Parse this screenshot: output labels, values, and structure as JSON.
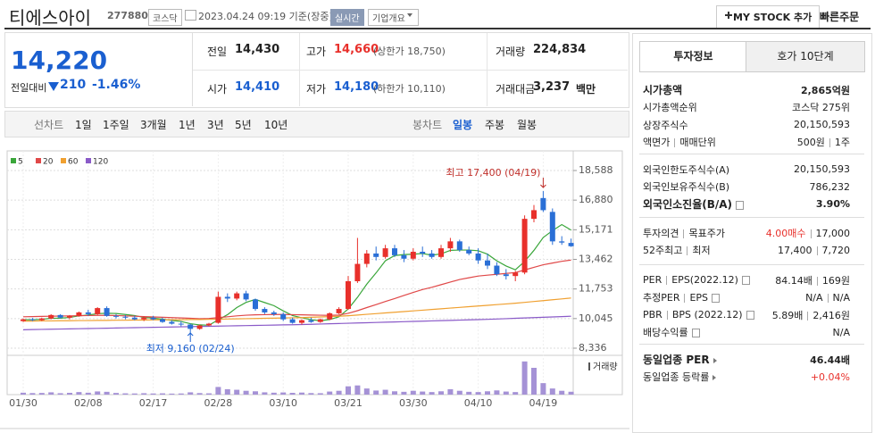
{
  "header": {
    "title": "티에스아이",
    "code": "277880",
    "market": "코스닥",
    "time": "2023.04.24 09:19 기준(장중)",
    "realtime": "실시간",
    "overview": "기업개요",
    "mystock": "MY STOCK 추가",
    "quick": "빠른주문"
  },
  "quote": {
    "price": "14,220",
    "change_label": "전일대비",
    "change": "210",
    "pct": "-1.46%",
    "stats": [
      [
        {
          "label": "전일",
          "value": "14,430",
          "color": "#222"
        },
        {
          "label": "고가",
          "value": "14,660",
          "color": "#e8302b",
          "sub": "(상한가 18,750)"
        },
        {
          "label": "거래량",
          "value": "224,834",
          "color": "#222"
        }
      ],
      [
        {
          "label": "시가",
          "value": "14,410",
          "color": "#1a5fd0"
        },
        {
          "label": "저가",
          "value": "14,180",
          "color": "#1a5fd0",
          "sub": "(하한가 10,110)"
        },
        {
          "label": "거래대금",
          "value": "3,237",
          "color": "#222",
          "sub": "백만"
        }
      ]
    ]
  },
  "tabs": {
    "line_label": "선차트",
    "line_periods": [
      "1일",
      "1주일",
      "3개월",
      "1년",
      "3년",
      "5년",
      "10년"
    ],
    "candle_label": "봉차트",
    "candle_periods": [
      "일봉",
      "주봉",
      "월봉"
    ],
    "candle_active": 0
  },
  "info": {
    "tabs": [
      "투자정보",
      "호가 10단계"
    ],
    "active_tab": 0,
    "sections": [
      [
        {
          "label": [
            "시가총액"
          ],
          "value": [
            "2,865억원"
          ],
          "bold": true
        },
        {
          "label": [
            "시가총액순위"
          ],
          "value": [
            "코스닥 275위"
          ]
        },
        {
          "label": [
            "상장주식수"
          ],
          "value": [
            "20,150,593"
          ]
        },
        {
          "label": [
            "액면가",
            "매매단위"
          ],
          "value": [
            "500원",
            "1주"
          ]
        }
      ],
      [
        {
          "label": [
            "외국인한도주식수(A)"
          ],
          "value": [
            "20,150,593"
          ]
        },
        {
          "label": [
            "외국인보유주식수(B)"
          ],
          "value": [
            "786,232"
          ]
        },
        {
          "label": [
            "외국인소진율(B/A)"
          ],
          "value": [
            "3.90%"
          ],
          "bold": true,
          "help": true
        }
      ],
      [
        {
          "label": [
            "투자의견",
            "목표주가"
          ],
          "value": [
            "4.00매수",
            "17,000"
          ],
          "accent": 0
        },
        {
          "label": [
            "52주최고",
            "최저"
          ],
          "value": [
            "17,400",
            "7,720"
          ]
        }
      ],
      [
        {
          "label": [
            "PER",
            "EPS(2022.12)"
          ],
          "value": [
            "84.14배",
            "169원"
          ],
          "help": true
        },
        {
          "label": [
            "추정PER",
            "EPS"
          ],
          "value": [
            "N/A",
            "N/A"
          ],
          "help": true
        },
        {
          "label": [
            "PBR",
            "BPS (2022.12)"
          ],
          "value": [
            "5.89배",
            "2,416원"
          ],
          "help": true
        },
        {
          "label": [
            "배당수익률"
          ],
          "value": [
            "N/A"
          ],
          "help": true
        }
      ],
      [
        {
          "label": [
            "동일업종 PER"
          ],
          "value": [
            "46.44배"
          ],
          "bold": true,
          "arrow": true
        },
        {
          "label": [
            "동일업종 등락률"
          ],
          "value": [
            "+0.04%"
          ],
          "arrow": true,
          "accent": 0
        }
      ]
    ]
  },
  "chart_data": [
    {
      "type": "candlestick",
      "up_color": "#e8302b",
      "down_color": "#2a6fd6",
      "grid": true,
      "categories": [
        "01/30",
        null,
        null,
        null,
        null,
        null,
        null,
        "02/08",
        null,
        null,
        null,
        null,
        null,
        null,
        "02/17",
        null,
        null,
        null,
        null,
        null,
        null,
        "02/28",
        null,
        null,
        null,
        null,
        null,
        null,
        "03/10",
        null,
        null,
        null,
        null,
        null,
        null,
        "03/21",
        null,
        null,
        null,
        null,
        null,
        null,
        "03/30",
        null,
        null,
        null,
        null,
        null,
        null,
        "04/10",
        null,
        null,
        null,
        null,
        null,
        null,
        "04/19",
        null,
        null,
        null
      ],
      "open": [
        9900,
        10000,
        9950,
        10050,
        10250,
        10100,
        10200,
        10400,
        10300,
        10650,
        10200,
        10150,
        10100,
        10000,
        10100,
        10000,
        9850,
        9750,
        9700,
        9450,
        9650,
        9800,
        11300,
        11200,
        11500,
        11150,
        10600,
        10400,
        10300,
        10000,
        9800,
        9950,
        9850,
        10000,
        10350,
        10600,
        12200,
        13200,
        13800,
        13600,
        14100,
        13700,
        13500,
        13900,
        13800,
        13600,
        14100,
        14500,
        14000,
        13800,
        13400,
        13100,
        12600,
        12500,
        12700,
        15800,
        17000,
        16200,
        14500,
        14410
      ],
      "high": [
        10050,
        10080,
        10100,
        10300,
        10300,
        10250,
        10450,
        10550,
        10700,
        10750,
        10300,
        10250,
        10200,
        10150,
        10200,
        10100,
        9950,
        9900,
        9750,
        9700,
        9800,
        11600,
        11500,
        11600,
        11650,
        11200,
        10700,
        10500,
        10400,
        10100,
        10000,
        10100,
        10050,
        10400,
        10700,
        12500,
        14700,
        14000,
        14200,
        14300,
        14300,
        14000,
        14100,
        14200,
        14000,
        14300,
        14700,
        14600,
        14200,
        14100,
        13800,
        13300,
        12900,
        12800,
        16000,
        16600,
        17400,
        16400,
        14800,
        14660
      ],
      "low": [
        9850,
        9900,
        9900,
        10000,
        10050,
        10000,
        10150,
        10200,
        10250,
        10150,
        10050,
        10000,
        9950,
        9900,
        9950,
        9800,
        9700,
        9600,
        9160,
        9400,
        9600,
        9750,
        11000,
        11100,
        11050,
        10500,
        10300,
        10200,
        9900,
        9750,
        9700,
        9800,
        9800,
        9950,
        10300,
        10550,
        12100,
        13000,
        13400,
        13500,
        13600,
        13300,
        13400,
        13600,
        13500,
        13500,
        13900,
        13900,
        13700,
        13200,
        12900,
        12500,
        12300,
        12200,
        12600,
        15600,
        16200,
        14300,
        14300,
        14180
      ],
      "close": [
        10000,
        9950,
        10050,
        10250,
        10100,
        10200,
        10400,
        10300,
        10650,
        10200,
        10150,
        10100,
        10000,
        10100,
        10000,
        9850,
        9750,
        9700,
        9450,
        9650,
        9750,
        11300,
        11200,
        11500,
        11150,
        10600,
        10400,
        10300,
        10000,
        9800,
        9950,
        9850,
        10000,
        10350,
        10600,
        12200,
        13200,
        13800,
        13600,
        14100,
        13700,
        13500,
        13900,
        13800,
        13600,
        14100,
        14500,
        14000,
        13800,
        13400,
        13100,
        12600,
        12500,
        12700,
        15800,
        16300,
        16300,
        14500,
        14430,
        14220
      ],
      "series": [
        {
          "name": "5",
          "color": "#3aa63a",
          "values": [
            9980,
            9980,
            10000,
            10060,
            10070,
            10110,
            10200,
            10250,
            10330,
            10350,
            10340,
            10280,
            10220,
            10110,
            10070,
            10010,
            9940,
            9880,
            9750,
            9680,
            9660,
            9970,
            10270,
            10680,
            10980,
            11150,
            10970,
            10790,
            10490,
            10220,
            10090,
            9980,
            9920,
            9990,
            10150,
            10600,
            11270,
            12030,
            12680,
            13380,
            13680,
            13740,
            13760,
            13800,
            13700,
            13780,
            13980,
            14000,
            14000,
            13960,
            13760,
            13380,
            13080,
            12860,
            13340,
            13980,
            14720,
            15120,
            15470,
            15150
          ]
        },
        {
          "name": "20",
          "color": "#e04848",
          "values": [
            10150,
            10160,
            10170,
            10180,
            10190,
            10200,
            10210,
            10220,
            10230,
            10230,
            10220,
            10200,
            10180,
            10160,
            10140,
            10120,
            10100,
            10080,
            10060,
            10040,
            10050,
            10100,
            10150,
            10200,
            10240,
            10260,
            10270,
            10280,
            10280,
            10270,
            10260,
            10250,
            10240,
            10230,
            10250,
            10350,
            10500,
            10680,
            10850,
            11030,
            11200,
            11380,
            11550,
            11720,
            11850,
            12000,
            12150,
            12300,
            12400,
            12500,
            12550,
            12600,
            12650,
            12700,
            12850,
            13000,
            13150,
            13250,
            13350,
            13420
          ]
        },
        {
          "name": "60",
          "color": "#f0a030",
          "values": [
            9900,
            9900,
            9910,
            9910,
            9920,
            9920,
            9930,
            9930,
            9940,
            9940,
            9950,
            9950,
            9960,
            9960,
            9970,
            9970,
            9980,
            9980,
            9990,
            9990,
            10000,
            10010,
            10020,
            10030,
            10040,
            10050,
            10060,
            10070,
            10080,
            10090,
            10100,
            10120,
            10140,
            10160,
            10180,
            10210,
            10250,
            10290,
            10330,
            10370,
            10410,
            10450,
            10490,
            10530,
            10570,
            10610,
            10650,
            10690,
            10730,
            10770,
            10810,
            10850,
            10890,
            10930,
            10980,
            11030,
            11080,
            11130,
            11180,
            11230
          ]
        },
        {
          "name": "120",
          "color": "#8a5ac8",
          "values": [
            9400,
            9410,
            9420,
            9430,
            9440,
            9450,
            9460,
            9470,
            9480,
            9490,
            9500,
            9510,
            9520,
            9530,
            9540,
            9550,
            9560,
            9570,
            9580,
            9590,
            9600,
            9610,
            9620,
            9630,
            9640,
            9650,
            9660,
            9670,
            9680,
            9690,
            9700,
            9715,
            9730,
            9745,
            9760,
            9775,
            9790,
            9805,
            9820,
            9835,
            9850,
            9865,
            9880,
            9895,
            9910,
            9925,
            9940,
            9955,
            9970,
            9985,
            10000,
            10020,
            10040,
            10060,
            10080,
            10100,
            10120,
            10140,
            10160,
            10180
          ]
        }
      ],
      "ylim": [
        8336,
        18588
      ],
      "yticks": [
        {
          "value": 8336,
          "label": "8,336"
        },
        {
          "value": 10045,
          "label": "10,045"
        },
        {
          "value": 11753,
          "label": "11,753"
        },
        {
          "value": 13462,
          "label": "13,462"
        },
        {
          "value": 15171,
          "label": "15,171"
        },
        {
          "value": 16880,
          "label": "16,880"
        },
        {
          "value": 18588,
          "label": "18,588"
        }
      ],
      "annotations": {
        "high": "최고 17,400 (04/19)",
        "low": "최저 9,160 (02/24)"
      }
    },
    {
      "type": "bar",
      "ylim": [
        0,
        2800000
      ],
      "series": [
        {
          "name": "거래량",
          "color": "#a592d6",
          "values": [
            150000,
            120000,
            130000,
            180000,
            110000,
            140000,
            200000,
            150000,
            250000,
            220000,
            130000,
            100000,
            90000,
            110000,
            90000,
            100000,
            80000,
            90000,
            180000,
            120000,
            100000,
            600000,
            420000,
            380000,
            300000,
            260000,
            180000,
            150000,
            170000,
            140000,
            160000,
            120000,
            110000,
            240000,
            300000,
            650000,
            720000,
            480000,
            320000,
            380000,
            260000,
            220000,
            300000,
            240000,
            200000,
            260000,
            420000,
            300000,
            220000,
            200000,
            260000,
            330000,
            240000,
            200000,
            2600000,
            2100000,
            900000,
            480000,
            300000,
            224834
          ]
        }
      ]
    }
  ]
}
